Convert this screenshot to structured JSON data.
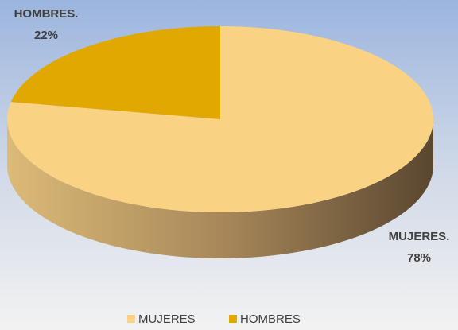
{
  "chart_data": {
    "type": "pie",
    "categories": [
      "MUJERES",
      "HOMBRES"
    ],
    "values": [
      78,
      22
    ],
    "value_labels": [
      "78%",
      "22%"
    ],
    "data_label_names": [
      "MUJERES.",
      "HOMBRES."
    ],
    "colors": [
      "#fad283",
      "#e0a800"
    ],
    "legend": "bottom"
  }
}
